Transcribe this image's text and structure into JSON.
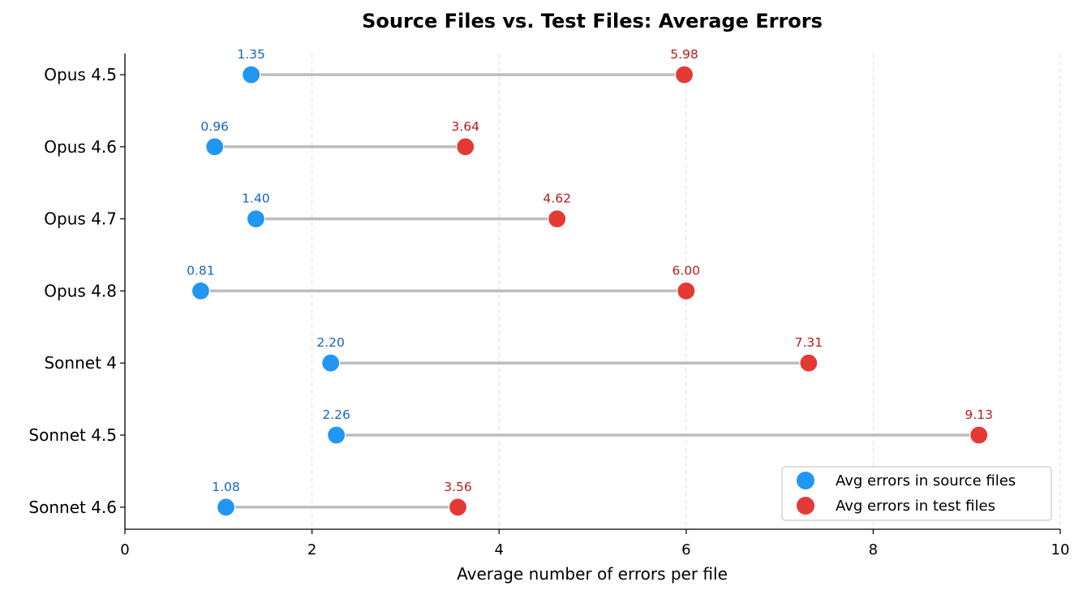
{
  "chart_data": {
    "type": "dumbbell",
    "title": "Source Files vs. Test Files: Average Errors",
    "xlabel": "Average number of errors per file",
    "ylabel": "",
    "xlim": [
      0,
      10
    ],
    "xticks": [
      0,
      2,
      4,
      6,
      8,
      10
    ],
    "grid": "vertical-dashed",
    "legend_placement": "lower-right",
    "categories": [
      "Opus 4.5",
      "Opus 4.6",
      "Opus 4.7",
      "Opus 4.8",
      "Sonnet 4",
      "Sonnet 4.5",
      "Sonnet 4.6"
    ],
    "series": [
      {
        "name": "Avg errors in source files",
        "color": "#2196f3",
        "label_color": "#1565c0",
        "values": [
          1.35,
          0.96,
          1.4,
          0.81,
          2.2,
          2.26,
          1.08
        ],
        "labels": [
          "1.35",
          "0.96",
          "1.40",
          "0.81",
          "2.20",
          "2.26",
          "1.08"
        ]
      },
      {
        "name": "Avg errors in test files",
        "color": "#e53935",
        "label_color": "#b71c1c",
        "values": [
          5.98,
          3.64,
          4.62,
          6.0,
          7.31,
          9.13,
          3.56
        ],
        "labels": [
          "5.98",
          "3.64",
          "4.62",
          "6.00",
          "7.31",
          "9.13",
          "3.56"
        ]
      }
    ],
    "connector_color": "#bdbdbd"
  }
}
